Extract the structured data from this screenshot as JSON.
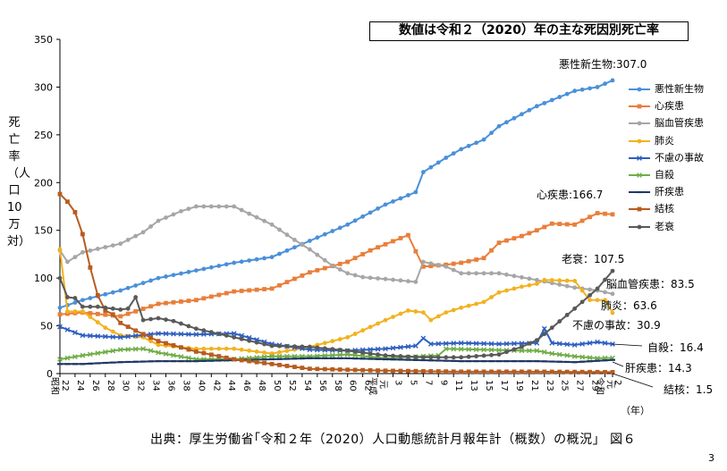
{
  "note": "数値は令和２（2020）年の主な死因別死亡率",
  "source": "出典：厚生労働省｢令和２年（2020）人口動態統計月報年計（概数）の概況」 図６",
  "page_number": "3",
  "x_unit": "（年）",
  "y_title": "死亡率（人口10万対）",
  "chart_data": {
    "type": "line",
    "xlim": [
      1947,
      2020
    ],
    "ylim": [
      0,
      350
    ],
    "yticks": [
      0,
      50,
      100,
      150,
      200,
      250,
      300,
      350
    ],
    "x_ticks": [
      {
        "year": 1947,
        "label": "22",
        "era": "昭和"
      },
      {
        "year": 1949,
        "label": "24"
      },
      {
        "year": 1951,
        "label": "26"
      },
      {
        "year": 1953,
        "label": "28"
      },
      {
        "year": 1955,
        "label": "30"
      },
      {
        "year": 1957,
        "label": "32"
      },
      {
        "year": 1959,
        "label": "34"
      },
      {
        "year": 1961,
        "label": "36"
      },
      {
        "year": 1963,
        "label": "38"
      },
      {
        "year": 1965,
        "label": "40"
      },
      {
        "year": 1967,
        "label": "42"
      },
      {
        "year": 1969,
        "label": "44"
      },
      {
        "year": 1971,
        "label": "46"
      },
      {
        "year": 1973,
        "label": "48"
      },
      {
        "year": 1975,
        "label": "50"
      },
      {
        "year": 1977,
        "label": "52"
      },
      {
        "year": 1979,
        "label": "54"
      },
      {
        "year": 1981,
        "label": "56"
      },
      {
        "year": 1983,
        "label": "58"
      },
      {
        "year": 1985,
        "label": "60"
      },
      {
        "year": 1987,
        "label": "62"
      },
      {
        "year": 1989,
        "label": "元",
        "era": "平成"
      },
      {
        "year": 1991,
        "label": "3"
      },
      {
        "year": 1993,
        "label": "5"
      },
      {
        "year": 1995,
        "label": "7"
      },
      {
        "year": 1997,
        "label": "9"
      },
      {
        "year": 1999,
        "label": "11"
      },
      {
        "year": 2001,
        "label": "13"
      },
      {
        "year": 2003,
        "label": "15"
      },
      {
        "year": 2005,
        "label": "17"
      },
      {
        "year": 2007,
        "label": "19"
      },
      {
        "year": 2009,
        "label": "21"
      },
      {
        "year": 2011,
        "label": "23"
      },
      {
        "year": 2013,
        "label": "25"
      },
      {
        "year": 2015,
        "label": "27"
      },
      {
        "year": 2017,
        "label": "29"
      },
      {
        "year": 2019,
        "label": "元",
        "era": "令和"
      },
      {
        "year": 2020,
        "label": "2"
      }
    ],
    "series": [
      {
        "name": "悪性新生物",
        "color": "#4A90D9",
        "marker": "circle",
        "end_label": "悪性新生物:307.0",
        "points": [
          [
            1947,
            69
          ],
          [
            1950,
            77
          ],
          [
            1955,
            87
          ],
          [
            1960,
            100
          ],
          [
            1965,
            108
          ],
          [
            1970,
            116
          ],
          [
            1975,
            122
          ],
          [
            1980,
            139
          ],
          [
            1985,
            156
          ],
          [
            1990,
            177
          ],
          [
            1994,
            190
          ],
          [
            1995,
            211
          ],
          [
            1998,
            226
          ],
          [
            2000,
            235
          ],
          [
            2003,
            245
          ],
          [
            2005,
            259
          ],
          [
            2010,
            280
          ],
          [
            2015,
            296
          ],
          [
            2018,
            300
          ],
          [
            2020,
            307
          ]
        ]
      },
      {
        "name": "心疾患",
        "color": "#E87F3A",
        "marker": "square",
        "end_label": "心疾患:166.7",
        "points": [
          [
            1947,
            62
          ],
          [
            1950,
            64
          ],
          [
            1955,
            60
          ],
          [
            1960,
            73
          ],
          [
            1965,
            77
          ],
          [
            1970,
            86
          ],
          [
            1975,
            89
          ],
          [
            1980,
            106
          ],
          [
            1985,
            117
          ],
          [
            1988,
            129
          ],
          [
            1993,
            145
          ],
          [
            1994,
            128
          ],
          [
            1995,
            112
          ],
          [
            1998,
            114
          ],
          [
            2000,
            116
          ],
          [
            2003,
            121
          ],
          [
            2005,
            137
          ],
          [
            2008,
            144
          ],
          [
            2010,
            150
          ],
          [
            2012,
            157
          ],
          [
            2015,
            156
          ],
          [
            2017,
            164
          ],
          [
            2018,
            168
          ],
          [
            2020,
            166.7
          ]
        ]
      },
      {
        "name": "脳血管疾患",
        "color": "#A6A6A6",
        "marker": "circle",
        "end_label": "脳血管疾患：83.5",
        "points": [
          [
            1947,
            129
          ],
          [
            1948,
            117
          ],
          [
            1950,
            127
          ],
          [
            1955,
            136
          ],
          [
            1958,
            148
          ],
          [
            1960,
            160
          ],
          [
            1963,
            170
          ],
          [
            1965,
            175
          ],
          [
            1970,
            175
          ],
          [
            1975,
            156
          ],
          [
            1978,
            140
          ],
          [
            1980,
            130
          ],
          [
            1983,
            113
          ],
          [
            1985,
            105
          ],
          [
            1987,
            101
          ],
          [
            1990,
            99
          ],
          [
            1994,
            96
          ],
          [
            1995,
            117
          ],
          [
            1998,
            112
          ],
          [
            2000,
            105
          ],
          [
            2005,
            105
          ],
          [
            2010,
            98
          ],
          [
            2015,
            90
          ],
          [
            2018,
            87
          ],
          [
            2020,
            83.5
          ]
        ]
      },
      {
        "name": "肺炎",
        "color": "#F2B21F",
        "marker": "circle",
        "end_label": "肺炎：63.6",
        "points": [
          [
            1947,
            130
          ],
          [
            1948,
            65
          ],
          [
            1950,
            65
          ],
          [
            1953,
            48
          ],
          [
            1955,
            40
          ],
          [
            1958,
            38
          ],
          [
            1960,
            30
          ],
          [
            1965,
            26
          ],
          [
            1970,
            26
          ],
          [
            1975,
            21
          ],
          [
            1980,
            28
          ],
          [
            1985,
            38
          ],
          [
            1990,
            56
          ],
          [
            1993,
            66
          ],
          [
            1995,
            64
          ],
          [
            1996,
            56
          ],
          [
            1998,
            64
          ],
          [
            2000,
            69
          ],
          [
            2003,
            75
          ],
          [
            2005,
            85
          ],
          [
            2008,
            91
          ],
          [
            2010,
            94
          ],
          [
            2011,
            98
          ],
          [
            2015,
            97
          ],
          [
            2017,
            77
          ],
          [
            2019,
            77
          ],
          [
            2020,
            63.6
          ]
        ]
      },
      {
        "name": "不慮の事故",
        "color": "#2F5FBF",
        "marker": "cross",
        "end_label": "不慮の事故：30.9",
        "points": [
          [
            1947,
            49
          ],
          [
            1950,
            40
          ],
          [
            1955,
            38
          ],
          [
            1960,
            42
          ],
          [
            1965,
            41
          ],
          [
            1970,
            42
          ],
          [
            1975,
            31
          ],
          [
            1980,
            25
          ],
          [
            1985,
            24
          ],
          [
            1990,
            26
          ],
          [
            1994,
            29
          ],
          [
            1995,
            37
          ],
          [
            1996,
            31
          ],
          [
            2000,
            32
          ],
          [
            2005,
            31
          ],
          [
            2010,
            32
          ],
          [
            2011,
            47
          ],
          [
            2012,
            32
          ],
          [
            2015,
            30
          ],
          [
            2018,
            33
          ],
          [
            2020,
            30.9
          ]
        ]
      },
      {
        "name": "自殺",
        "color": "#70AD47",
        "marker": "cross",
        "end_label": "自殺：16.4",
        "points": [
          [
            1947,
            15
          ],
          [
            1950,
            19
          ],
          [
            1955,
            25
          ],
          [
            1958,
            26
          ],
          [
            1960,
            22
          ],
          [
            1965,
            15
          ],
          [
            1970,
            15
          ],
          [
            1975,
            18
          ],
          [
            1980,
            18
          ],
          [
            1985,
            20
          ],
          [
            1990,
            16
          ],
          [
            1997,
            19
          ],
          [
            1998,
            26
          ],
          [
            2003,
            25
          ],
          [
            2008,
            24
          ],
          [
            2010,
            24
          ],
          [
            2012,
            21
          ],
          [
            2015,
            18
          ],
          [
            2018,
            16
          ],
          [
            2020,
            16.4
          ]
        ]
      },
      {
        "name": "肝疾患",
        "color": "#1F3864",
        "marker": "dash",
        "end_label": "肝疾患：14.3",
        "points": [
          [
            1947,
            10
          ],
          [
            1950,
            10
          ],
          [
            1955,
            12
          ],
          [
            1960,
            13
          ],
          [
            1965,
            13
          ],
          [
            1970,
            14
          ],
          [
            1975,
            15
          ],
          [
            1980,
            16
          ],
          [
            1985,
            16
          ],
          [
            1990,
            15
          ],
          [
            1995,
            14
          ],
          [
            2000,
            13
          ],
          [
            2005,
            13
          ],
          [
            2010,
            13
          ],
          [
            2015,
            12
          ],
          [
            2020,
            14.3
          ]
        ]
      },
      {
        "name": "結核",
        "color": "#B85C1F",
        "marker": "square",
        "end_label": "結核：1.5",
        "points": [
          [
            1947,
            188
          ],
          [
            1948,
            180
          ],
          [
            1949,
            169
          ],
          [
            1950,
            146
          ],
          [
            1951,
            111
          ],
          [
            1952,
            82
          ],
          [
            1953,
            66
          ],
          [
            1954,
            62
          ],
          [
            1955,
            53
          ],
          [
            1957,
            45
          ],
          [
            1960,
            34
          ],
          [
            1965,
            23
          ],
          [
            1970,
            15
          ],
          [
            1975,
            10
          ],
          [
            1980,
            5
          ],
          [
            1985,
            4
          ],
          [
            1990,
            3
          ],
          [
            2000,
            2
          ],
          [
            2010,
            2
          ],
          [
            2020,
            1.5
          ]
        ]
      },
      {
        "name": "老衰",
        "color": "#595959",
        "marker": "circle",
        "end_label": "老衰：107.5",
        "points": [
          [
            1947,
            100
          ],
          [
            1948,
            80
          ],
          [
            1949,
            79
          ],
          [
            1950,
            70
          ],
          [
            1952,
            70
          ],
          [
            1955,
            67
          ],
          [
            1956,
            68
          ],
          [
            1957,
            80
          ],
          [
            1958,
            56
          ],
          [
            1960,
            58
          ],
          [
            1962,
            55
          ],
          [
            1965,
            47
          ],
          [
            1970,
            38
          ],
          [
            1975,
            29
          ],
          [
            1980,
            28
          ],
          [
            1985,
            24
          ],
          [
            1990,
            19
          ],
          [
            1995,
            17
          ],
          [
            2000,
            17
          ],
          [
            2005,
            20
          ],
          [
            2008,
            28
          ],
          [
            2010,
            35
          ],
          [
            2012,
            48
          ],
          [
            2015,
            68
          ],
          [
            2018,
            89
          ],
          [
            2020,
            107.5
          ]
        ]
      }
    ]
  }
}
